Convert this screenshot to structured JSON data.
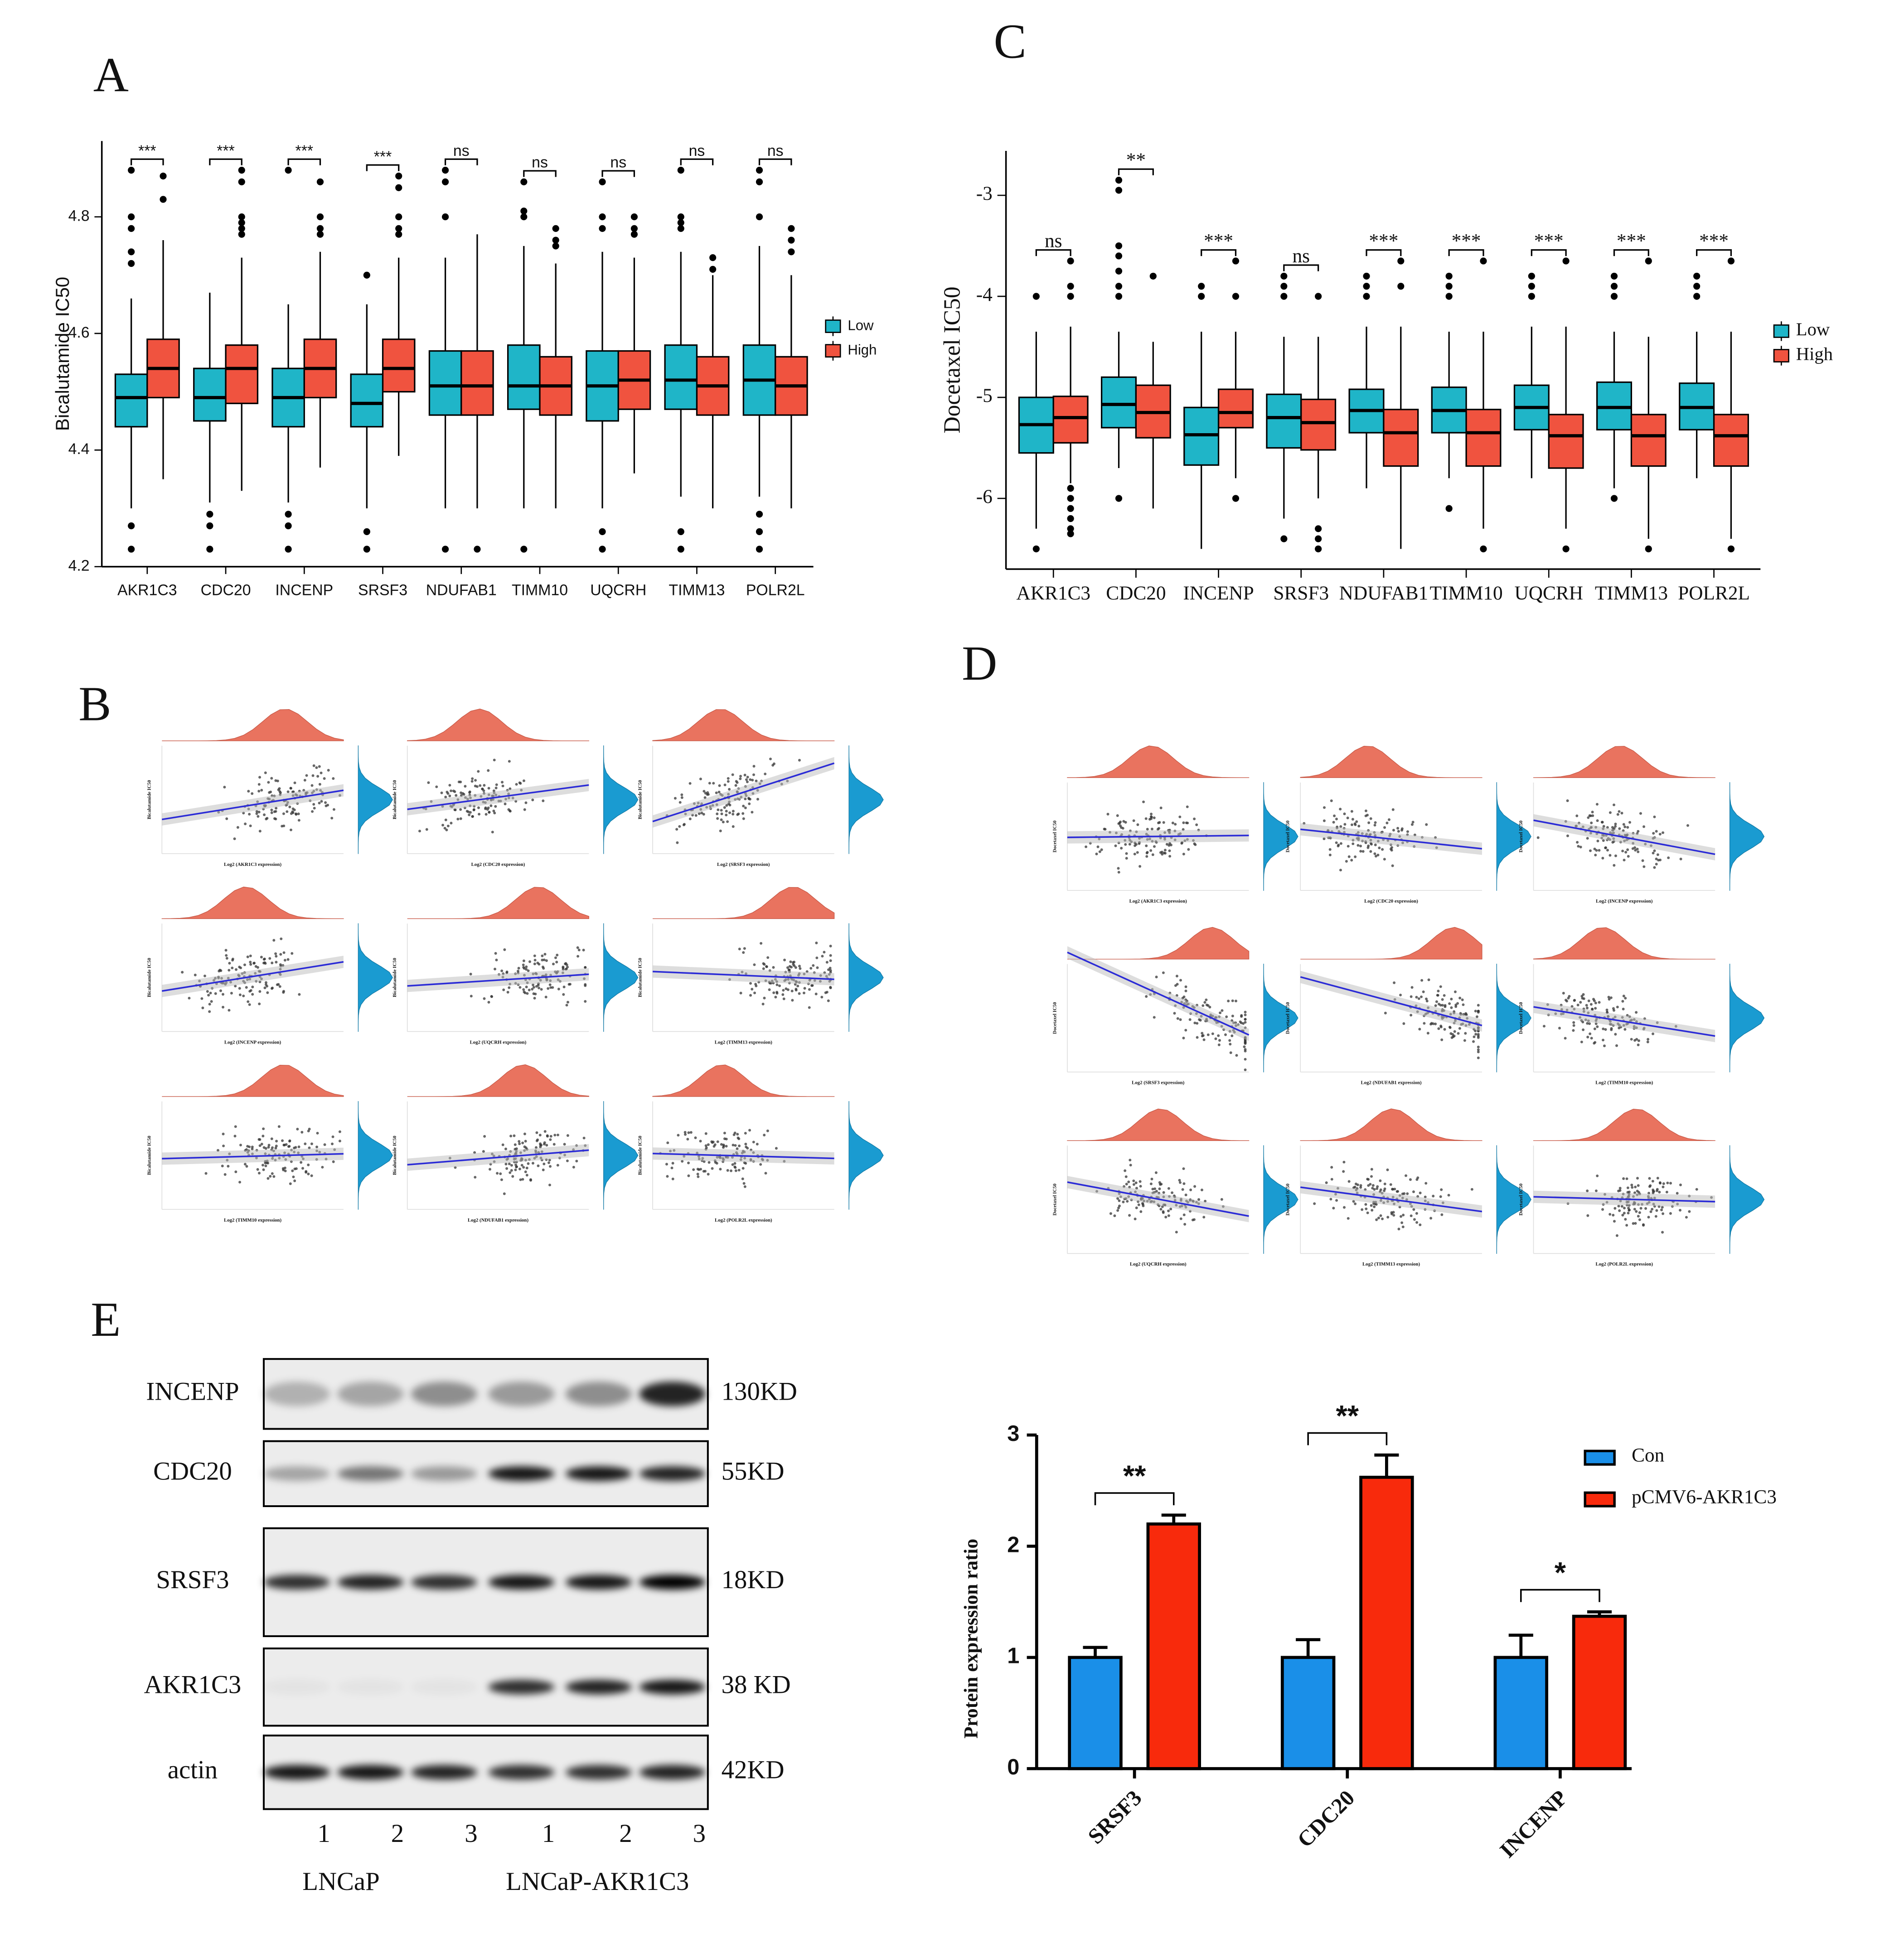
{
  "panel_labels": [
    "A",
    "B",
    "C",
    "D",
    "E"
  ],
  "chart_data": [
    {
      "type": "box",
      "y_label": "Bicalutamide IC50",
      "categories": [
        "AKR1C3",
        "CDC20",
        "INCENP",
        "SRSF3",
        "NDUFAB1",
        "TIMM10",
        "UQCRH",
        "TIMM13",
        "POLR2L"
      ],
      "annotations": [
        "***",
        "***",
        "***",
        "***",
        "ns",
        "ns",
        "ns",
        "ns",
        "ns"
      ],
      "ylim": [
        4.2,
        4.93
      ],
      "yticks": [
        4.2,
        4.4,
        4.6,
        4.8
      ],
      "series": [
        {
          "name": "Low",
          "color": "#1fb5c8",
          "boxes": [
            [
              4.3,
              4.44,
              4.49,
              4.53,
              4.66
            ],
            [
              4.31,
              4.45,
              4.49,
              4.54,
              4.67
            ],
            [
              4.31,
              4.44,
              4.49,
              4.54,
              4.65
            ],
            [
              4.3,
              4.44,
              4.48,
              4.53,
              4.65
            ],
            [
              4.3,
              4.46,
              4.51,
              4.57,
              4.73
            ],
            [
              4.3,
              4.47,
              4.51,
              4.58,
              4.75
            ],
            [
              4.3,
              4.45,
              4.51,
              4.57,
              4.74
            ],
            [
              4.32,
              4.47,
              4.52,
              4.58,
              4.74
            ],
            [
              4.32,
              4.46,
              4.52,
              4.58,
              4.75
            ]
          ],
          "outliers": [
            [
              4.88,
              4.8,
              4.78,
              4.74,
              4.72,
              4.27,
              4.23
            ],
            [
              4.29,
              4.27,
              4.23
            ],
            [
              4.88,
              4.29,
              4.27,
              4.23
            ],
            [
              4.7,
              4.26,
              4.23
            ],
            [
              4.88,
              4.86,
              4.8,
              4.23
            ],
            [
              4.86,
              4.81,
              4.8,
              4.23
            ],
            [
              4.86,
              4.8,
              4.78,
              4.26,
              4.23
            ],
            [
              4.88,
              4.8,
              4.79,
              4.78,
              4.26,
              4.23
            ],
            [
              4.88,
              4.86,
              4.8,
              4.29,
              4.26,
              4.23
            ]
          ]
        },
        {
          "name": "High",
          "color": "#f0533f",
          "boxes": [
            [
              4.35,
              4.49,
              4.54,
              4.59,
              4.76
            ],
            [
              4.33,
              4.48,
              4.54,
              4.58,
              4.73
            ],
            [
              4.37,
              4.49,
              4.54,
              4.59,
              4.74
            ],
            [
              4.39,
              4.5,
              4.54,
              4.59,
              4.73
            ],
            [
              4.3,
              4.46,
              4.51,
              4.57,
              4.77
            ],
            [
              4.3,
              4.46,
              4.51,
              4.56,
              4.72
            ],
            [
              4.36,
              4.47,
              4.52,
              4.57,
              4.73
            ],
            [
              4.3,
              4.46,
              4.51,
              4.56,
              4.7
            ],
            [
              4.3,
              4.46,
              4.51,
              4.56,
              4.7
            ]
          ],
          "outliers": [
            [
              4.87,
              4.83
            ],
            [
              4.88,
              4.86,
              4.8,
              4.79,
              4.78,
              4.77
            ],
            [
              4.86,
              4.8,
              4.78,
              4.77
            ],
            [
              4.87,
              4.85,
              4.8,
              4.78,
              4.77
            ],
            [
              4.23
            ],
            [
              4.78,
              4.76,
              4.75
            ],
            [
              4.8,
              4.78,
              4.77
            ],
            [
              4.73,
              4.71
            ],
            [
              4.78,
              4.76,
              4.74
            ]
          ]
        }
      ]
    },
    {
      "type": "scatter",
      "y_label": "Bicalutamide IC50",
      "x_labels": [
        "Log2 (AKR1C3 expression)",
        "Log2 (CDC20 expression)",
        "Log2 (SRSF3 expression)",
        "Log2 (INCENP expression)",
        "Log2 (UQCRH expression)",
        "Log2 (TIMM13 expression)",
        "Log2 (TIMM10 expression)",
        "Log2 (NDUFAB1 expression)",
        "Log2 (POLR2L expression)"
      ]
    },
    {
      "type": "box",
      "y_label": "Docetaxel IC50",
      "categories": [
        "AKR1C3",
        "CDC20",
        "INCENP",
        "SRSF3",
        "NDUFAB1",
        "TIMM10",
        "UQCRH",
        "TIMM13",
        "POLR2L"
      ],
      "annotations": [
        "ns",
        "**",
        "***",
        "ns",
        "***",
        "***",
        "***",
        "***",
        "***"
      ],
      "ylim": [
        -6.7,
        -2.56
      ],
      "yticks": [
        -3,
        -4,
        -5,
        -6
      ],
      "series": [
        {
          "name": "Low",
          "color": "#1fb5c8",
          "boxes": [
            [
              -6.3,
              -5.55,
              -5.27,
              -5.0,
              -4.35
            ],
            [
              -5.7,
              -5.3,
              -5.07,
              -4.8,
              -4.35
            ],
            [
              -6.5,
              -5.67,
              -5.37,
              -5.1,
              -4.35
            ],
            [
              -6.2,
              -5.5,
              -5.2,
              -4.97,
              -4.4
            ],
            [
              -5.9,
              -5.35,
              -5.13,
              -4.92,
              -4.3
            ],
            [
              -5.8,
              -5.35,
              -5.13,
              -4.9,
              -4.35
            ],
            [
              -5.8,
              -5.32,
              -5.1,
              -4.88,
              -4.3
            ],
            [
              -5.9,
              -5.32,
              -5.1,
              -4.85,
              -4.35
            ],
            [
              -5.8,
              -5.32,
              -5.1,
              -4.86,
              -4.35
            ]
          ],
          "outliers": [
            [
              -4.0,
              -6.5
            ],
            [
              -2.85,
              -2.95,
              -3.5,
              -3.6,
              -3.75,
              -3.9,
              -4.0,
              -6.0
            ],
            [
              -3.9,
              -4.0
            ],
            [
              -3.8,
              -3.9,
              -4.0,
              -6.4
            ],
            [
              -3.8,
              -3.9,
              -4.0
            ],
            [
              -3.8,
              -3.9,
              -4.0,
              -6.1
            ],
            [
              -3.8,
              -3.9,
              -4.0
            ],
            [
              -3.8,
              -3.9,
              -4.0,
              -6.0
            ],
            [
              -3.8,
              -3.9,
              -4.0
            ]
          ]
        },
        {
          "name": "High",
          "color": "#f0533f",
          "boxes": [
            [
              -5.85,
              -5.45,
              -5.2,
              -4.99,
              -4.3
            ],
            [
              -6.1,
              -5.4,
              -5.15,
              -4.88,
              -4.45
            ],
            [
              -5.8,
              -5.3,
              -5.15,
              -4.92,
              -4.35
            ],
            [
              -6.0,
              -5.52,
              -5.25,
              -5.02,
              -4.4
            ],
            [
              -6.5,
              -5.68,
              -5.35,
              -5.12,
              -4.3
            ],
            [
              -6.3,
              -5.68,
              -5.35,
              -5.12,
              -4.35
            ],
            [
              -6.3,
              -5.7,
              -5.38,
              -5.17,
              -4.3
            ],
            [
              -6.4,
              -5.68,
              -5.38,
              -5.17,
              -4.4
            ],
            [
              -6.4,
              -5.68,
              -5.38,
              -5.17,
              -4.35
            ]
          ],
          "outliers": [
            [
              -3.65,
              -3.9,
              -4.0,
              -5.9,
              -6.0,
              -6.1,
              -6.2,
              -6.3,
              -6.35
            ],
            [
              -3.8
            ],
            [
              -3.65,
              -4.0,
              -6.0
            ],
            [
              -4.0,
              -6.3,
              -6.4,
              -6.5
            ],
            [
              -3.65,
              -3.9
            ],
            [
              -3.65,
              -6.5
            ],
            [
              -3.65,
              -6.5
            ],
            [
              -3.65,
              -6.5
            ],
            [
              -3.65,
              -6.5
            ]
          ]
        }
      ]
    },
    {
      "type": "scatter",
      "y_label": "Docetaxel IC50",
      "x_labels": [
        "Log2 (AKR1C3 expression)",
        "Log2 (CDC20 expression)",
        "Log2 (INCENP expression)",
        "Log2 (SRSF3 expression)",
        "Log2 (NDUFAB1 expression)",
        "Log2 (TIMM10 expression)",
        "Log2 (UQCRH expression)",
        "Log2 (TIMM13 expression)",
        "Log2 (POLR2L expression)"
      ]
    },
    {
      "type": "bar",
      "y_label": "Protein expression ratio",
      "categories": [
        "SRSF3",
        "CDC20",
        "INCENP"
      ],
      "annotations": [
        "**",
        "**",
        "*"
      ],
      "ylim": [
        0,
        3
      ],
      "yticks": [
        0,
        1,
        2,
        3
      ],
      "series": [
        {
          "name": "Con",
          "color": "#1a8fe8",
          "values": [
            1,
            1,
            1
          ],
          "errors": [
            0.09,
            0.16,
            0.2
          ]
        },
        {
          "name": "pCMV6-AKR1C3",
          "color": "#f82a0c",
          "values": [
            2.2,
            2.62,
            1.37
          ],
          "errors": [
            0.08,
            0.2,
            0.04
          ]
        }
      ]
    }
  ],
  "blot": {
    "proteins": [
      "INCENP",
      "CDC20",
      "SRSF3",
      "AKR1C3",
      "actin"
    ],
    "sizes": [
      "130KD",
      "55KD",
      "18KD",
      "38 KD",
      "42KD"
    ],
    "lanes": [
      "1",
      "2",
      "3",
      "1",
      "2",
      "3"
    ],
    "groups": [
      "LNCaP",
      "LNCaP-AKR1C3"
    ]
  }
}
